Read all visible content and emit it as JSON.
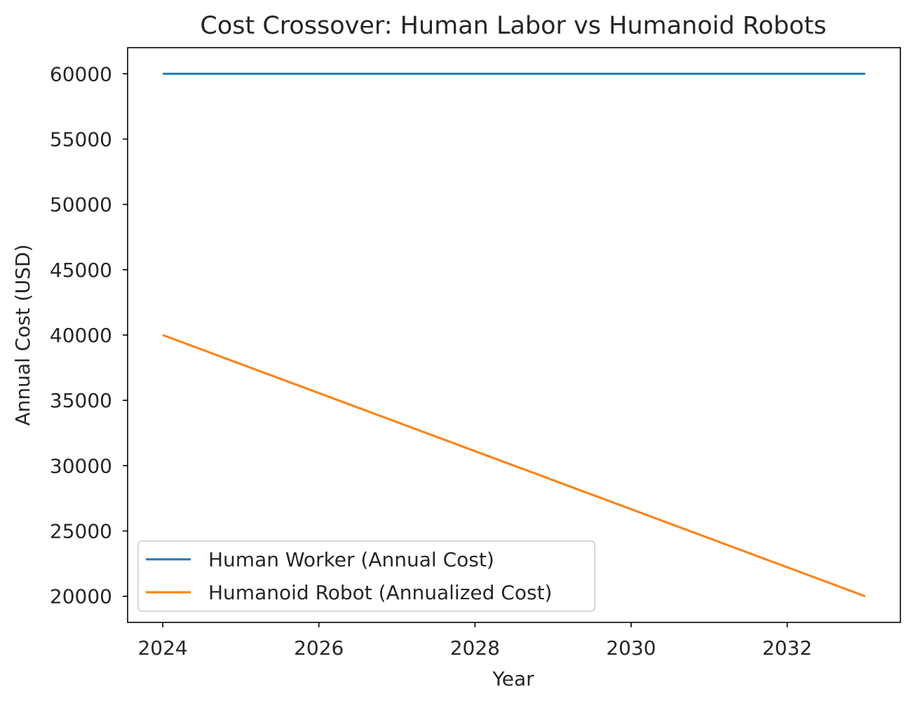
{
  "chart_data": {
    "type": "line",
    "title": "Cost Crossover: Human Labor vs Humanoid Robots",
    "xlabel": "Year",
    "ylabel": "Annual Cost (USD)",
    "x": [
      2024,
      2025,
      2026,
      2027,
      2028,
      2029,
      2030,
      2031,
      2032,
      2033
    ],
    "series": [
      {
        "name": "Human Worker (Annual Cost)",
        "color": "#1f77b4",
        "values": [
          60000,
          60000,
          60000,
          60000,
          60000,
          60000,
          60000,
          60000,
          60000,
          60000
        ]
      },
      {
        "name": "Humanoid Robot (Annualized Cost)",
        "color": "#ff7f0e",
        "values": [
          40000,
          37778,
          35556,
          33333,
          31111,
          28889,
          26667,
          24444,
          22222,
          20000
        ]
      }
    ],
    "xticks": [
      2024,
      2026,
      2028,
      2030,
      2032
    ],
    "yticks": [
      20000,
      25000,
      30000,
      35000,
      40000,
      45000,
      50000,
      55000,
      60000
    ],
    "xlim": [
      2023.55,
      2033.45
    ],
    "ylim": [
      18000,
      62000
    ],
    "grid": false,
    "legend_position": "lower-left"
  }
}
